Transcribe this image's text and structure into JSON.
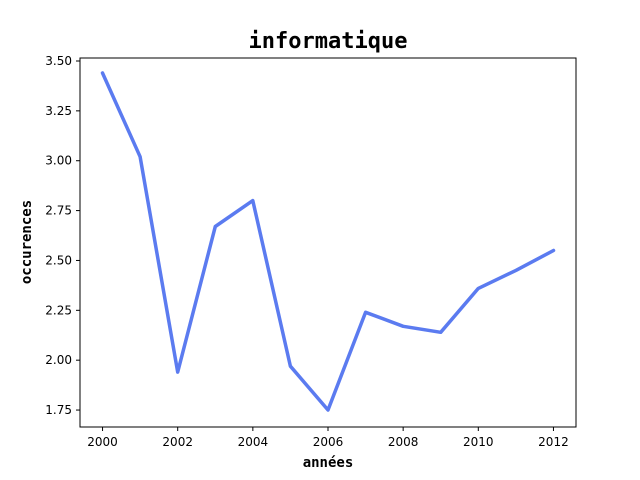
{
  "chart_data": {
    "type": "line",
    "title": "informatique",
    "xlabel": "années",
    "ylabel": "occurences",
    "xlim": [
      1999.4,
      2012.6
    ],
    "ylim": [
      1.665,
      3.515
    ],
    "xticks": [
      "2000",
      "2002",
      "2004",
      "2006",
      "2008",
      "2010",
      "2012"
    ],
    "yticks": [
      "1.75",
      "2.00",
      "2.25",
      "2.50",
      "2.75",
      "3.00",
      "3.25",
      "3.50"
    ],
    "grid": false,
    "line_color": "#5b7bf0",
    "series": [
      {
        "x": [
          2000,
          2001,
          2002,
          2003,
          2004,
          2005,
          2006,
          2007,
          2008,
          2009,
          2010,
          2011,
          2012
        ],
        "values": [
          3.44,
          3.02,
          1.94,
          2.67,
          2.8,
          1.97,
          1.75,
          2.24,
          2.17,
          2.14,
          2.36,
          2.45,
          2.55
        ]
      }
    ]
  }
}
